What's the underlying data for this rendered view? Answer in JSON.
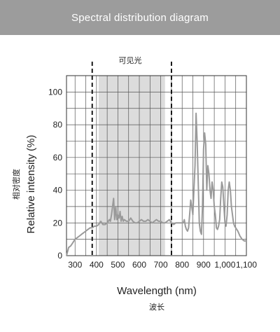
{
  "header": {
    "title": "Spectral distribution diagram"
  },
  "chart_data": {
    "type": "line",
    "title": "Spectral distribution diagram",
    "xlabel": "Wavelength (nm)",
    "xlabel_cn": "波长",
    "ylabel": "Relative intensity (%)",
    "ylabel_cn": "相对密度",
    "region_label": "可见光",
    "visible_band": [
      380,
      750
    ],
    "shaded_band": [
      410,
      720
    ],
    "xlim": [
      260,
      1100
    ],
    "ylim": [
      0,
      110
    ],
    "xticks": [
      300,
      400,
      500,
      600,
      700,
      800,
      900,
      1000,
      1100
    ],
    "xtick_labels": [
      "300",
      "400",
      "500",
      "600",
      "700",
      "800",
      "900",
      "1,000",
      "1,100"
    ],
    "yticks": [
      0,
      20,
      40,
      60,
      80,
      100
    ],
    "grid": true,
    "colors": {
      "line": "#9a9a9a",
      "band": "#dcdcdc",
      "grid": "#555555",
      "dashed": "#000000"
    },
    "series": [
      {
        "x": [
          260,
          270,
          280,
          290,
          300,
          310,
          320,
          330,
          340,
          350,
          360,
          370,
          380,
          390,
          400,
          410,
          420,
          425,
          430,
          440,
          450,
          460,
          465,
          470,
          475,
          480,
          485,
          490,
          495,
          500,
          505,
          510,
          515,
          520,
          525,
          530,
          540,
          550,
          560,
          570,
          580,
          590,
          600,
          610,
          620,
          630,
          640,
          650,
          660,
          670,
          680,
          690,
          700,
          710,
          720,
          730,
          740,
          750,
          760,
          770,
          780,
          790,
          800,
          805,
          810,
          815,
          820,
          825,
          830,
          835,
          840,
          845,
          850,
          855,
          860,
          865,
          870,
          875,
          880,
          885,
          890,
          895,
          900,
          905,
          910,
          915,
          920,
          925,
          930,
          935,
          940,
          945,
          950,
          955,
          960,
          965,
          970,
          975,
          980,
          985,
          990,
          995,
          1000,
          1005,
          1010,
          1015,
          1020,
          1025,
          1030,
          1035,
          1040,
          1045,
          1050,
          1060,
          1070,
          1080,
          1090,
          1100
        ],
        "y": [
          0,
          5,
          6,
          8,
          10,
          11,
          12,
          13,
          14,
          15,
          16,
          17,
          17,
          18,
          18,
          19,
          21,
          20,
          19,
          19,
          20,
          22,
          21,
          25,
          30,
          35,
          22,
          30,
          22,
          25,
          23,
          27,
          21,
          24,
          21,
          22,
          21,
          21,
          23,
          21,
          20,
          20,
          21,
          22,
          21,
          21,
          22,
          21,
          20,
          21,
          22,
          21,
          21,
          20,
          20,
          21,
          22,
          20,
          19,
          20,
          20,
          20,
          20,
          20,
          22,
          18,
          16,
          15,
          17,
          25,
          34,
          30,
          25,
          40,
          55,
          87,
          70,
          45,
          20,
          15,
          13,
          30,
          65,
          75,
          68,
          40,
          55,
          50,
          40,
          35,
          45,
          40,
          30,
          25,
          17,
          16,
          18,
          22,
          35,
          45,
          42,
          30,
          20,
          18,
          25,
          40,
          45,
          40,
          30,
          25,
          20,
          18,
          17,
          15,
          12,
          10,
          9,
          9
        ]
      }
    ]
  }
}
